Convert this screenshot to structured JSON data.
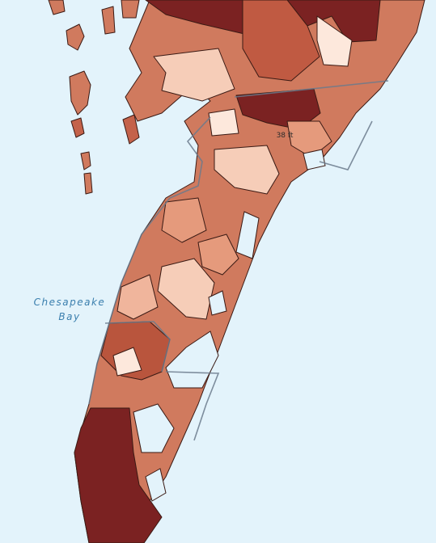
{
  "labels": {
    "water": [
      "Chesapeake",
      "Bay"
    ],
    "elevation": "38 ft"
  }
}
